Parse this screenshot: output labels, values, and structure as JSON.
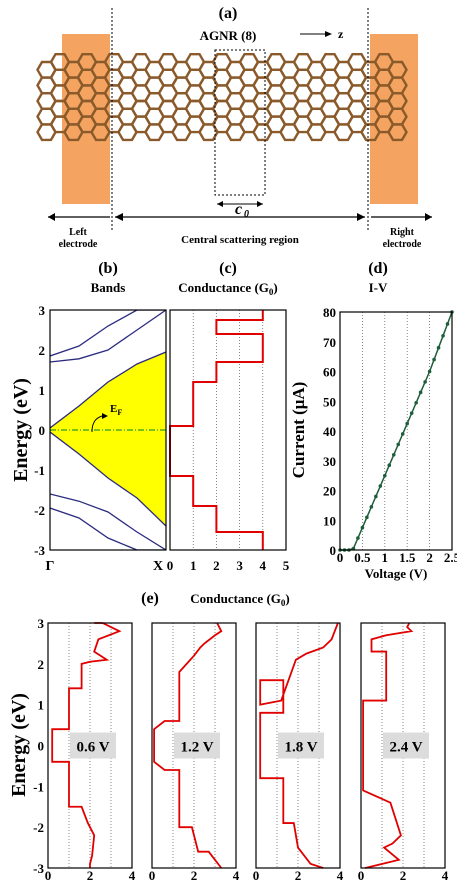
{
  "colors": {
    "electrode": "#f4a460",
    "carbon": "#8b5a2b",
    "hydrogen": "#e8e8e8",
    "band_line": "#2b2b80",
    "gap_fill": "#ffff00",
    "fermi_line": "#2a9d2a",
    "conductance": "#e00000",
    "iv_line": "#1e5e3a",
    "bias_box": "#dcdcdc"
  },
  "panel_a": {
    "label": "(a)",
    "title": "AGNR (8)",
    "axis": "z",
    "cell": "c",
    "cell_sub": "0",
    "left_electrode": [
      "Left",
      "electrode"
    ],
    "central": "Central scattering region",
    "right_electrode": [
      "Right",
      "electrode"
    ]
  },
  "panel_b": {
    "label": "(b)",
    "title": "Bands",
    "ylabel": "Energy (eV)",
    "fermi": "E",
    "fermi_sub": "F",
    "x_start": "Γ",
    "x_end": "X"
  },
  "panel_c": {
    "label": "(c)",
    "title": "Conductance (G",
    "title_sub": "0",
    "title_end": ")"
  },
  "panel_d": {
    "label": "(d)",
    "title": "I-V",
    "ylabel": "Current (μA)",
    "xlabel": "Voltage (V)"
  },
  "panel_e": {
    "label": "(e)",
    "title": "Conductance (G",
    "title_sub": "0",
    "title_end": ")",
    "ylabel": "Energy (eV)",
    "biases": [
      "0.6 V",
      "1.2 V",
      "1.8 V",
      "2.4 V"
    ]
  },
  "chart_data": [
    {
      "type": "line",
      "panel": "b",
      "title": "Bands",
      "ylabel": "Energy (eV)",
      "ylim": [
        -3,
        3
      ],
      "yticks": [
        "3",
        "2",
        "1",
        "0",
        "-1",
        "-2",
        "-3"
      ],
      "xticks": [
        "Γ",
        "X"
      ],
      "series": [
        {
          "x": [
            0,
            0.25,
            0.5,
            0.75,
            1
          ],
          "values": [
            0.05,
            0.6,
            1.2,
            1.65,
            1.95
          ]
        },
        {
          "x": [
            0,
            0.25,
            0.5,
            0.75,
            1
          ],
          "values": [
            -0.05,
            -0.6,
            -1.2,
            -1.7,
            -2.4
          ]
        },
        {
          "x": [
            0,
            0.25,
            0.5,
            0.75,
            1
          ],
          "values": [
            1.7,
            1.78,
            2.0,
            2.5,
            3.0
          ]
        },
        {
          "x": [
            0,
            0.25,
            0.5,
            0.75,
            1
          ],
          "values": [
            1.85,
            2.1,
            2.6,
            3.0,
            3.0
          ]
        },
        {
          "x": [
            0,
            0.25,
            0.5,
            0.75,
            1
          ],
          "values": [
            -1.6,
            -1.78,
            -2.05,
            -2.55,
            -3.0
          ]
        },
        {
          "x": [
            0,
            0.25,
            0.5,
            0.75,
            1
          ],
          "values": [
            -1.95,
            -2.2,
            -2.7,
            -3.0,
            -3.0
          ]
        }
      ]
    },
    {
      "type": "line",
      "panel": "c",
      "title": "Conductance (G0)",
      "xlim": [
        0,
        5
      ],
      "ylim": [
        -3,
        3
      ],
      "xticks": [
        "0",
        "1",
        "2",
        "3",
        "4",
        "5"
      ],
      "series": [
        {
          "x": [
            4,
            4,
            2,
            2,
            1,
            1,
            0,
            0,
            1,
            1,
            2,
            2,
            4,
            4,
            2,
            2,
            4,
            4
          ],
          "values": [
            -3,
            -2.55,
            -2.55,
            -1.9,
            -1.9,
            -1.15,
            -1.15,
            0.1,
            0.1,
            1.2,
            1.2,
            1.7,
            1.7,
            2.4,
            2.4,
            2.75,
            2.75,
            3
          ]
        }
      ]
    },
    {
      "type": "line",
      "panel": "d",
      "title": "I-V",
      "xlabel": "Voltage (V)",
      "ylabel": "Current (μA)",
      "xlim": [
        0,
        2.5
      ],
      "ylim": [
        0,
        80
      ],
      "xticks": [
        "0",
        "0.5",
        "1",
        "1.5",
        "2",
        "2.5"
      ],
      "yticks": [
        "0",
        "10",
        "20",
        "30",
        "40",
        "50",
        "60",
        "70",
        "80"
      ],
      "series": [
        {
          "x": [
            0,
            0.1,
            0.2,
            0.3,
            0.4,
            0.5,
            0.6,
            0.7,
            0.8,
            0.9,
            1.0,
            1.1,
            1.2,
            1.3,
            1.4,
            1.5,
            1.6,
            1.7,
            1.8,
            1.9,
            2.0,
            2.1,
            2.2,
            2.3,
            2.4,
            2.5
          ],
          "values": [
            0,
            0,
            0,
            0.5,
            4,
            7.5,
            11,
            14.5,
            18,
            21.5,
            25,
            28.5,
            32,
            35.5,
            39,
            42.5,
            46,
            49.5,
            53,
            56.5,
            60,
            64,
            68,
            72,
            76,
            80
          ]
        }
      ]
    },
    {
      "type": "line",
      "panel": "e",
      "title": "Conductance (G0)",
      "ylabel": "Energy (eV)",
      "xlim": [
        0,
        4
      ],
      "ylim": [
        -3,
        3
      ],
      "xticks": [
        "0",
        "2",
        "4"
      ],
      "series": [
        {
          "name": "0.6 V",
          "x": [
            2,
            2,
            2.1,
            2.2,
            1.9,
            1.6,
            1,
            1,
            0.2,
            0.2,
            1,
            1,
            1.6,
            1.6,
            2,
            2.8,
            2.2,
            2.4,
            3.4,
            2.6,
            2.2
          ],
          "values": [
            -3,
            -2.9,
            -2.7,
            -2.2,
            -1.9,
            -1.5,
            -1.5,
            -0.4,
            -0.4,
            0.4,
            0.4,
            1.4,
            1.4,
            2.0,
            2.05,
            2.1,
            2.3,
            2.6,
            2.8,
            3.0,
            3.0
          ]
        },
        {
          "name": "1.2 V",
          "x": [
            3.3,
            2.7,
            2.2,
            1.9,
            1.3,
            1.3,
            0.6,
            0.1,
            0.1,
            0.6,
            1.3,
            1.3,
            2.0,
            2.3,
            2.5,
            3.0,
            3.3,
            3.1
          ],
          "values": [
            -3,
            -2.6,
            -2.6,
            -2.0,
            -2.0,
            -0.6,
            -0.6,
            -0.4,
            0.4,
            0.6,
            0.6,
            1.8,
            2.2,
            2.4,
            2.5,
            2.7,
            2.8,
            3.0
          ]
        },
        {
          "name": "1.8 V",
          "x": [
            3.2,
            2.6,
            2.0,
            1.8,
            1.3,
            1.3,
            0.2,
            0.2,
            1.3,
            1.3,
            0.2,
            0.2,
            1.2,
            1.9,
            2.4,
            3.2,
            3.6,
            3.9
          ],
          "values": [
            -3,
            -2.9,
            -2.5,
            -1.9,
            -1.9,
            -0.8,
            -0.8,
            0.8,
            0.8,
            1.6,
            1.6,
            1.0,
            1.1,
            2.1,
            2.25,
            2.4,
            2.6,
            3.0
          ]
        },
        {
          "name": "2.4 V",
          "x": [
            0.2,
            1.8,
            1.1,
            1.5,
            1.9,
            1.4,
            0.1,
            0.1,
            1.2,
            1.2,
            0.5,
            0.5,
            1.2,
            2.4,
            2.2,
            2.3
          ],
          "values": [
            -3,
            -2.8,
            -2.5,
            -2.4,
            -2.2,
            -1.4,
            -1.1,
            1.1,
            1.1,
            2.3,
            2.3,
            2.6,
            2.7,
            2.8,
            2.9,
            3.0
          ]
        }
      ]
    }
  ]
}
